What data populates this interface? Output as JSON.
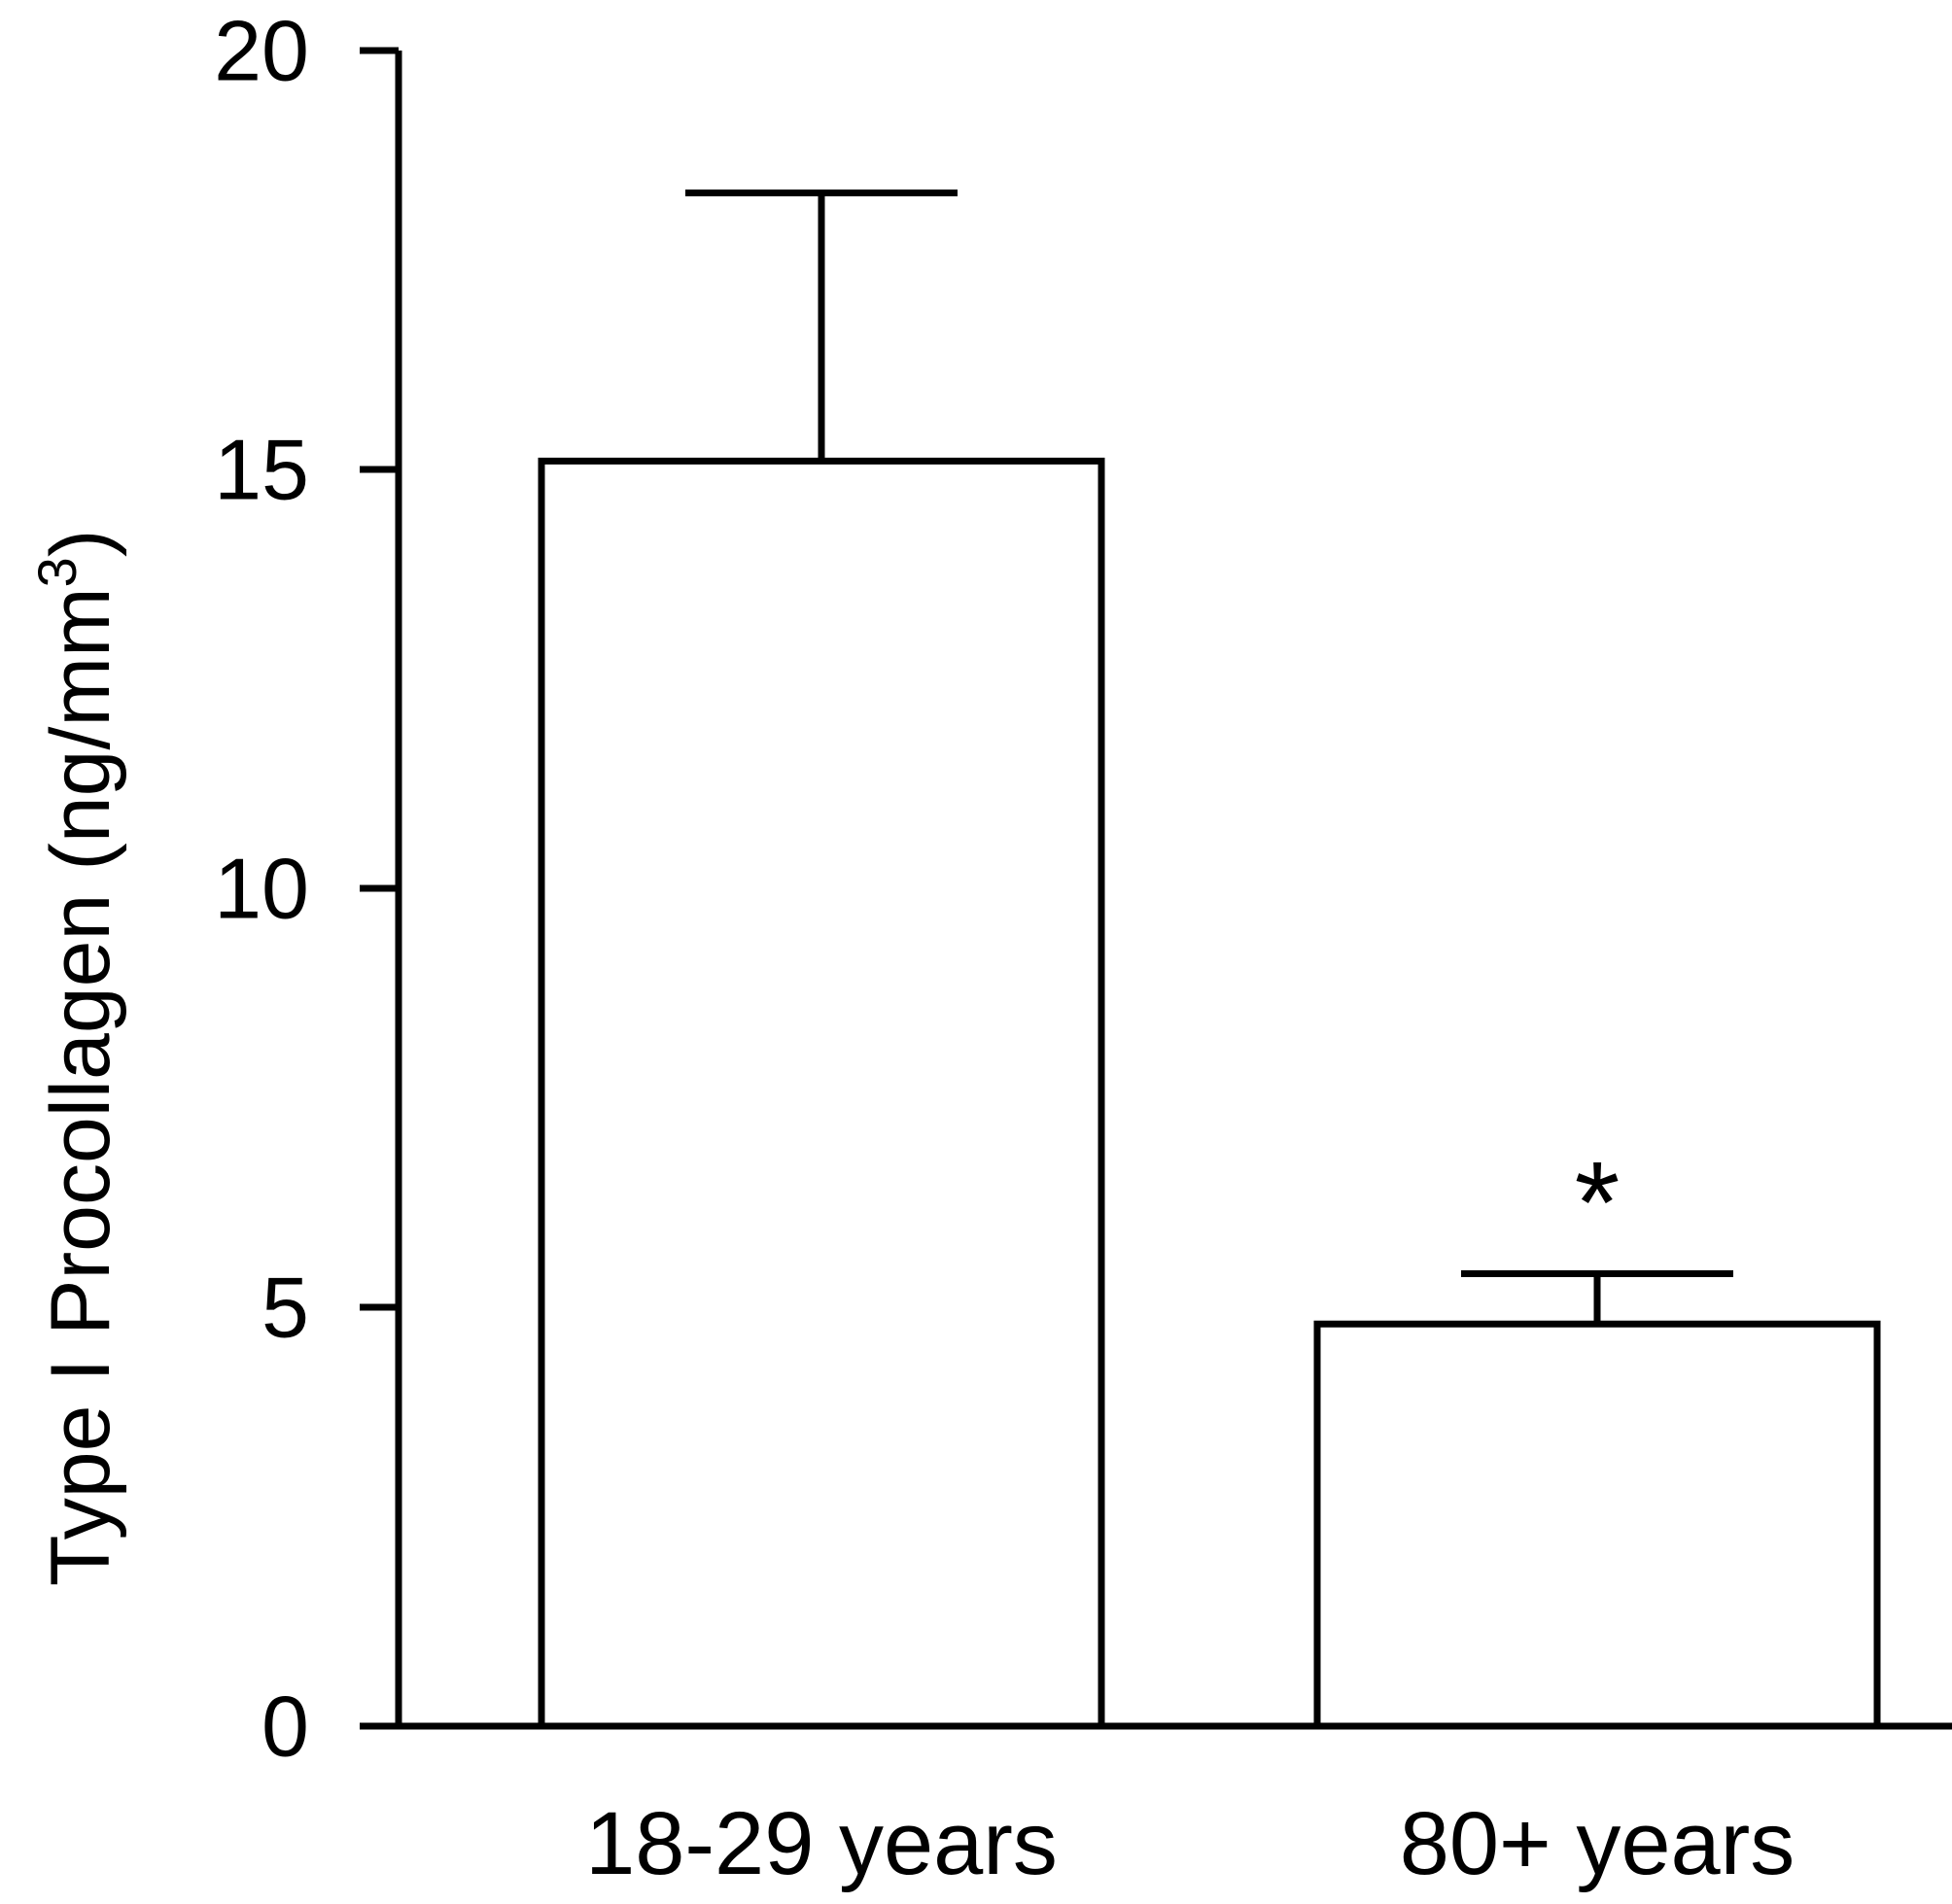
{
  "chart_data": {
    "type": "bar",
    "categories": [
      "18-29 years",
      "80+ years"
    ],
    "values": [
      15.1,
      4.8
    ],
    "error_upper": [
      18.3,
      5.4
    ],
    "annotations": [
      "",
      "*"
    ],
    "title": "",
    "xlabel": "",
    "ylabel": "Type I Procollagen (ng/mm",
    "ylabel_superscript": "3",
    "ylabel_close": ")",
    "ylim": [
      0,
      20
    ],
    "yticks": [
      "0",
      "5",
      "10",
      "15",
      "20"
    ],
    "grid": false,
    "legend": "none",
    "colors": {
      "bar_fill": "#ffffff",
      "stroke": "#000000"
    }
  }
}
